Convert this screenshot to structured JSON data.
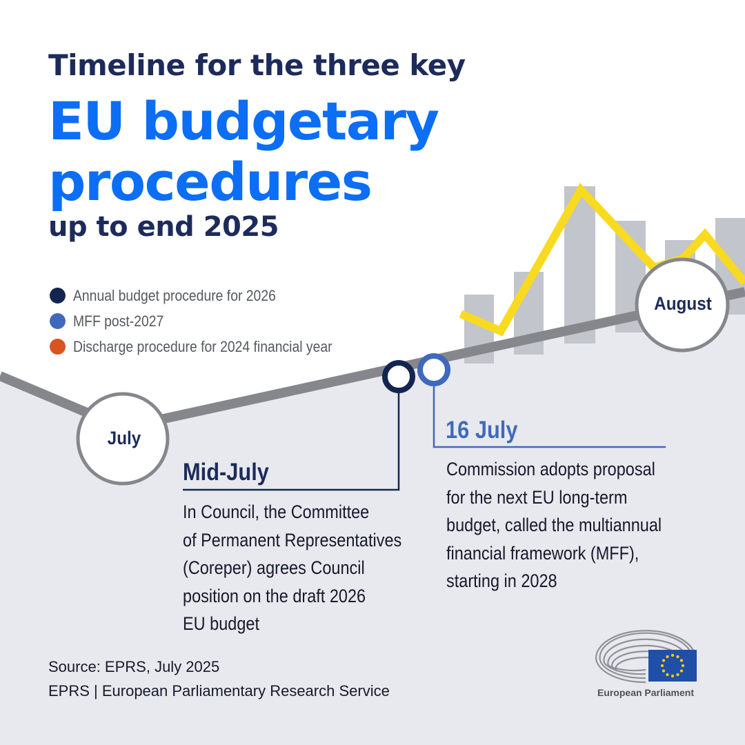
{
  "title": {
    "line1": "Timeline for the three key",
    "line2": "EU budgetary",
    "line3": "procedures",
    "line4": "up to end 2025"
  },
  "legend": [
    {
      "label": "Annual budget procedure for 2026",
      "color": "#13254f"
    },
    {
      "label": "MFF post-2027",
      "color": "#3f69bb"
    },
    {
      "label": "Discharge procedure for 2024 financial year",
      "color": "#d9541e"
    }
  ],
  "months": {
    "first": "July",
    "second": "August"
  },
  "events": [
    {
      "date": "Mid-July",
      "procedure": "Annual budget procedure for 2026",
      "color": "#13254f",
      "description_lines": [
        "In Council, the Committee",
        "of Permanent Representatives",
        "(Coreper) agrees Council",
        "position on the draft 2026",
        "EU budget"
      ]
    },
    {
      "date": "16 July",
      "procedure": "MFF post-2027",
      "color": "#3f69bb",
      "description_lines": [
        "Commission adopts proposal",
        "for the next EU long-term",
        "budget, called the multiannual",
        "financial framework (MFF),",
        "starting in 2028"
      ]
    }
  ],
  "footer": {
    "source": "Source: EPRS, July 2025",
    "organization": "EPRS |  European Parliamentary Research Service"
  },
  "logo": {
    "name": "European Parliament",
    "flag_color": "#1f4fa8",
    "star_color": "#ffd200"
  },
  "decor_colors": {
    "timeline": "#86878c",
    "lower_panel": "#e8e9ee",
    "bars": "#c2c5cb",
    "trend_line": "#f8da20"
  }
}
